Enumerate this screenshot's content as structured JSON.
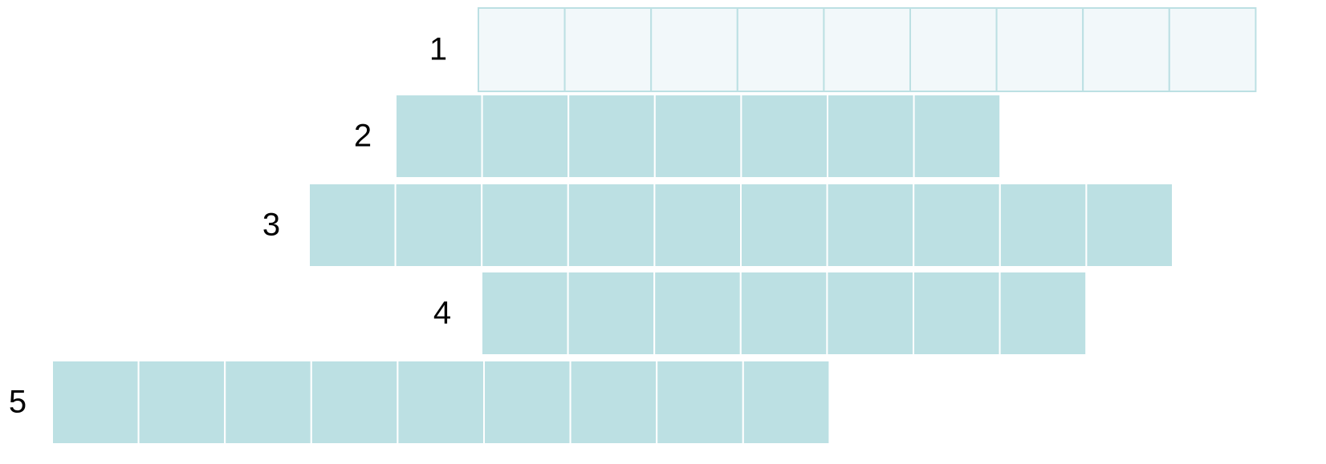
{
  "rows": [
    {
      "number": "1",
      "length": 9
    },
    {
      "number": "2",
      "length": 7
    },
    {
      "number": "3",
      "length": 10
    },
    {
      "number": "4",
      "length": 7
    },
    {
      "number": "5",
      "length": 9
    }
  ]
}
